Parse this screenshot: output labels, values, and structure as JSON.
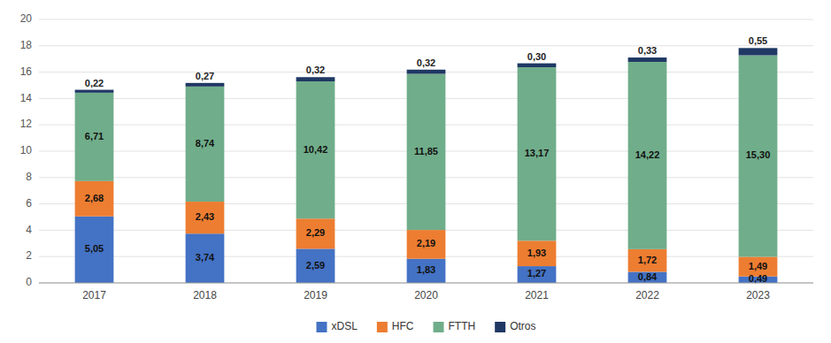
{
  "chart_data": {
    "type": "bar",
    "stacked": true,
    "data_labels": true,
    "grid": true,
    "legend": "bottom",
    "categories": [
      "2017",
      "2018",
      "2019",
      "2020",
      "2021",
      "2022",
      "2023"
    ],
    "series": [
      {
        "name": "xDSL",
        "color": "#4472C4",
        "values": [
          5.05,
          3.74,
          2.59,
          1.83,
          1.27,
          0.84,
          0.49
        ],
        "value_labels": [
          "5,05",
          "3,74",
          "2,59",
          "1,83",
          "1,27",
          "0,84",
          "0,49"
        ]
      },
      {
        "name": "HFC",
        "color": "#ED7D31",
        "values": [
          2.68,
          2.43,
          2.29,
          2.19,
          1.93,
          1.72,
          1.49
        ],
        "value_labels": [
          "2,68",
          "2,43",
          "2,29",
          "2,19",
          "1,93",
          "1,72",
          "1,49"
        ]
      },
      {
        "name": "FTTH",
        "color": "#70AD8A",
        "values": [
          6.71,
          8.74,
          10.42,
          11.85,
          13.17,
          14.22,
          15.3
        ],
        "value_labels": [
          "6,71",
          "8,74",
          "10,42",
          "11,85",
          "13,17",
          "14,22",
          "15,30"
        ]
      },
      {
        "name": "Otros",
        "color": "#1F3864",
        "values": [
          0.22,
          0.27,
          0.32,
          0.32,
          0.3,
          0.33,
          0.55
        ],
        "value_labels": [
          "0,22",
          "0,27",
          "0,32",
          "0,32",
          "0,30",
          "0,33",
          "0,55"
        ]
      }
    ],
    "ylim": [
      0,
      20
    ],
    "yticks": [
      0,
      2,
      4,
      6,
      8,
      10,
      12,
      14,
      16,
      18,
      20
    ]
  }
}
